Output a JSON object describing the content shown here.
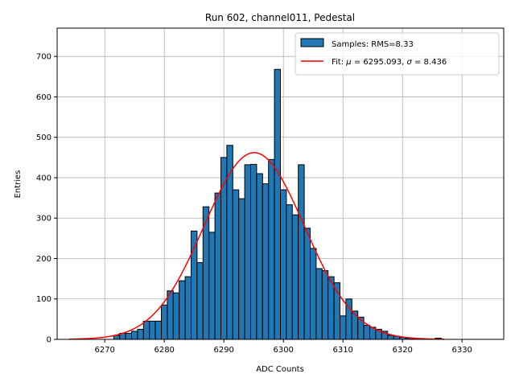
{
  "chart_data": {
    "type": "bar",
    "title": "Run 602, channel011, Pedestal",
    "xlabel": "ADC Counts",
    "ylabel": "Entries",
    "xlim": [
      6262,
      6337
    ],
    "ylim": [
      0,
      770
    ],
    "xticks": [
      6270,
      6280,
      6290,
      6300,
      6310,
      6320,
      6330
    ],
    "yticks": [
      0,
      100,
      200,
      300,
      400,
      500,
      600,
      700
    ],
    "grid": true,
    "legend_position": "top-right",
    "bin_width": 1,
    "bar_color": "#1f77b4",
    "fit_color": "#ff0000",
    "bins": [
      {
        "x": 6272,
        "y": 10
      },
      {
        "x": 6273,
        "y": 15
      },
      {
        "x": 6274,
        "y": 15
      },
      {
        "x": 6275,
        "y": 20
      },
      {
        "x": 6276,
        "y": 25
      },
      {
        "x": 6277,
        "y": 45
      },
      {
        "x": 6278,
        "y": 45
      },
      {
        "x": 6279,
        "y": 45
      },
      {
        "x": 6280,
        "y": 85
      },
      {
        "x": 6281,
        "y": 120
      },
      {
        "x": 6282,
        "y": 115
      },
      {
        "x": 6283,
        "y": 145
      },
      {
        "x": 6284,
        "y": 155
      },
      {
        "x": 6285,
        "y": 268
      },
      {
        "x": 6286,
        "y": 190
      },
      {
        "x": 6287,
        "y": 328
      },
      {
        "x": 6288,
        "y": 265
      },
      {
        "x": 6289,
        "y": 362
      },
      {
        "x": 6290,
        "y": 450
      },
      {
        "x": 6291,
        "y": 480
      },
      {
        "x": 6292,
        "y": 370
      },
      {
        "x": 6293,
        "y": 348
      },
      {
        "x": 6294,
        "y": 432
      },
      {
        "x": 6295,
        "y": 433
      },
      {
        "x": 6296,
        "y": 410
      },
      {
        "x": 6297,
        "y": 385
      },
      {
        "x": 6298,
        "y": 445
      },
      {
        "x": 6299,
        "y": 668
      },
      {
        "x": 6300,
        "y": 370
      },
      {
        "x": 6301,
        "y": 333
      },
      {
        "x": 6302,
        "y": 308
      },
      {
        "x": 6303,
        "y": 432
      },
      {
        "x": 6304,
        "y": 275
      },
      {
        "x": 6305,
        "y": 225
      },
      {
        "x": 6306,
        "y": 175
      },
      {
        "x": 6307,
        "y": 170
      },
      {
        "x": 6308,
        "y": 155
      },
      {
        "x": 6309,
        "y": 140
      },
      {
        "x": 6310,
        "y": 58
      },
      {
        "x": 6311,
        "y": 100
      },
      {
        "x": 6312,
        "y": 70
      },
      {
        "x": 6313,
        "y": 55
      },
      {
        "x": 6314,
        "y": 35
      },
      {
        "x": 6315,
        "y": 30
      },
      {
        "x": 6316,
        "y": 25
      },
      {
        "x": 6317,
        "y": 20
      },
      {
        "x": 6318,
        "y": 10
      },
      {
        "x": 6319,
        "y": 8
      },
      {
        "x": 6320,
        "y": 5
      },
      {
        "x": 6321,
        "y": 3
      },
      {
        "x": 6322,
        "y": 2
      },
      {
        "x": 6326,
        "y": 3
      }
    ],
    "fit": {
      "mu": 6295.093,
      "sigma": 8.436,
      "amplitude": 462,
      "x_range": [
        6264,
        6327
      ]
    },
    "legend": [
      {
        "label": "Samples: RMS=8.33",
        "kind": "patch"
      },
      {
        "label_prefix": "Fit: ",
        "mu_symbol": "μ",
        "mu_text": " = 6295.093, ",
        "sigma_symbol": "σ",
        "sigma_text": " = 8.436",
        "kind": "line"
      }
    ]
  }
}
